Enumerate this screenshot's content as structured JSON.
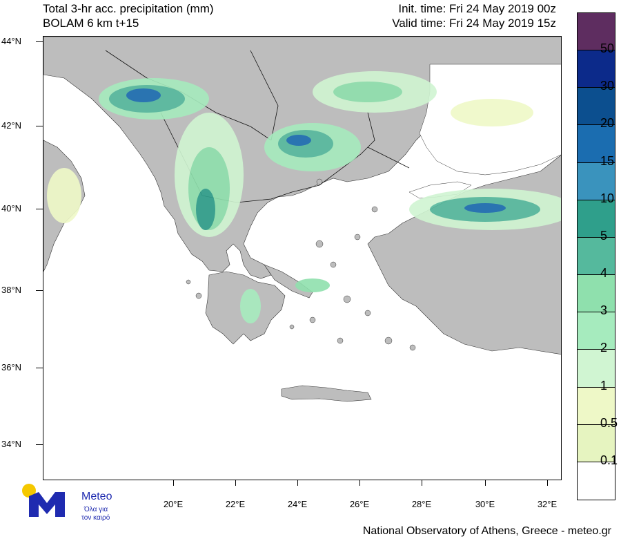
{
  "title": {
    "line1": "Total 3-hr acc. precipitation (mm)",
    "line2": "BOLAM 6 km t+15",
    "init": "Init. time: Fri 24 May 2019 00z",
    "valid": "Valid time: Fri 24 May 2019 15z"
  },
  "lat_labels": [
    "44°N",
    "42°N",
    "40°N",
    "38°N",
    "36°N",
    "34°N"
  ],
  "lon_labels": [
    "20°E",
    "22°E",
    "24°E",
    "26°E",
    "28°E",
    "30°E",
    "32°E"
  ],
  "colorbar": {
    "labels": [
      "50",
      "30",
      "20",
      "15",
      "10",
      "5",
      "4",
      "3",
      "2",
      "1",
      "0.5",
      "0.1"
    ],
    "colors": [
      "#5e2d60",
      "#0c2a8a",
      "#0c4f8f",
      "#1b6db0",
      "#3a93bd",
      "#2f9f8b",
      "#55b99d",
      "#8fe0ad",
      "#a6ebbe",
      "#d0f5d2",
      "#eef8c7",
      "#e6f4c0",
      "#ffffff"
    ]
  },
  "colors": {
    "land": "#bdbdbd",
    "sea": "#ffffff",
    "border": "#000000"
  },
  "logo": {
    "name": "Meteo",
    "tagline_1": "Όλα για",
    "tagline_2": "τον καιρό"
  },
  "footer": "National Observatory of Athens, Greece - meteo.gr"
}
